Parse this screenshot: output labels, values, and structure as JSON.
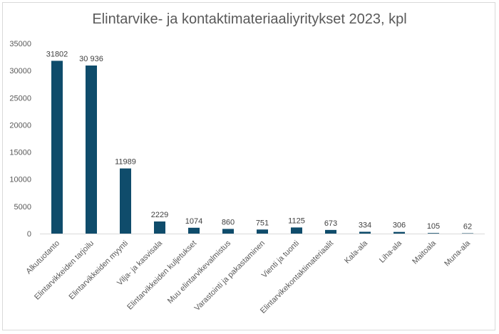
{
  "chart_data": {
    "type": "bar",
    "title": "Elintarvike- ja kontaktimateriaaliyritykset 2023, kpl",
    "categories": [
      "Alkutuotanto",
      "Elintarvikkeiden tarjoilu",
      "Elintarvikkeiden myynti",
      "Vilja- ja kasvisala",
      "Elintarvikkeiden kuljetukset",
      "Muu elintarvikevalmistus",
      "Varastointi ja pakastaminen",
      "Vienti ja tuonti",
      "Elintarvikekontaktimateriaalit",
      "Kala-ala",
      "Liha-ala",
      "Maitoala",
      "Muna-ala"
    ],
    "values": [
      31802,
      30936,
      11989,
      2229,
      1074,
      860,
      751,
      1125,
      673,
      334,
      306,
      105,
      62
    ],
    "data_labels": [
      "31802",
      "30 936",
      "11989",
      "2229",
      "1074",
      "860",
      "751",
      "1125",
      "673",
      "334",
      "306",
      "105",
      "62"
    ],
    "ylim": [
      0,
      35000
    ],
    "yticks": [
      "0",
      "5000",
      "10000",
      "15000",
      "20000",
      "25000",
      "30000",
      "35000"
    ],
    "xlabel": "",
    "ylabel": "",
    "grid": false,
    "legend": "none",
    "bar_color": "#0f4c6b"
  }
}
